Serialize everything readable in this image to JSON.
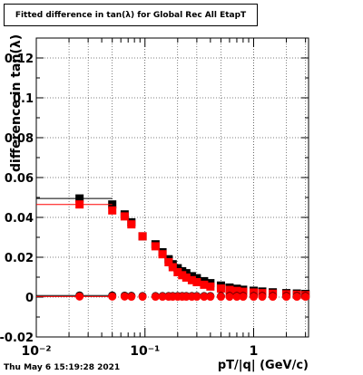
{
  "title": "Fitted difference in tan(λ) for Global Rec All EtapT",
  "timestamp": "Thu May  6 15:19:28 2021",
  "chart_data": {
    "type": "scatter",
    "title": "Fitted difference in tan(λ) for Global Rec All EtapT",
    "xlabel": "pT/|q| (GeV/c)",
    "ylabel": "difference in tan(λ)",
    "xscale": "log",
    "xlim": [
      0.01,
      3.2
    ],
    "ylim": [
      -0.02,
      0.13
    ],
    "grid": true,
    "x_ticks": [
      {
        "value": 0.01,
        "label": "10⁻²"
      },
      {
        "value": 0.1,
        "label": "10⁻¹"
      },
      {
        "value": 1,
        "label": "1"
      }
    ],
    "y_ticks": [
      {
        "value": -0.02,
        "label": "-0.02"
      },
      {
        "value": 0,
        "label": "0"
      },
      {
        "value": 0.02,
        "label": "0.02"
      },
      {
        "value": 0.04,
        "label": "0.04"
      },
      {
        "value": 0.06,
        "label": "0.06"
      },
      {
        "value": 0.08,
        "label": "0.08"
      },
      {
        "value": 0.1,
        "label": "0.1"
      },
      {
        "value": 0.12,
        "label": "0.12"
      }
    ],
    "series": [
      {
        "marker": "square",
        "color": "#000000",
        "x": [
          0.025,
          0.05,
          0.065,
          0.075,
          0.095,
          0.125,
          0.145,
          0.165,
          0.18,
          0.2,
          0.22,
          0.24,
          0.27,
          0.3,
          0.35,
          0.4,
          0.5,
          0.6,
          0.7,
          0.8,
          1.0,
          1.2,
          1.5,
          2.0,
          2.5,
          3.0
        ],
        "y": [
          0.0495,
          0.0465,
          0.0415,
          0.0375,
          0.0305,
          0.0265,
          0.0225,
          0.019,
          0.0165,
          0.0145,
          0.013,
          0.012,
          0.0105,
          0.0095,
          0.008,
          0.007,
          0.0058,
          0.0048,
          0.0042,
          0.0037,
          0.0032,
          0.0028,
          0.0024,
          0.002,
          0.0018,
          0.0016
        ],
        "xerr": [
          0.025,
          0.002,
          0.002,
          0.002,
          0.003,
          0.003,
          0.003,
          0.003,
          0.003,
          0.003,
          0.003,
          0.003,
          0.005,
          0.005,
          0.01,
          0.01,
          0.02,
          0.02,
          0.03,
          0.03,
          0.04,
          0.05,
          0.07,
          0.09,
          0.1,
          0.1
        ]
      },
      {
        "marker": "square",
        "color": "#ff0000",
        "x": [
          0.025,
          0.05,
          0.065,
          0.075,
          0.095,
          0.125,
          0.145,
          0.165,
          0.18,
          0.2,
          0.22,
          0.24,
          0.27,
          0.3,
          0.35,
          0.4,
          0.5,
          0.6,
          0.7,
          0.8,
          1.0,
          1.2,
          1.5,
          2.0,
          2.5,
          3.0
        ],
        "y": [
          0.0465,
          0.0435,
          0.0405,
          0.0365,
          0.0305,
          0.0255,
          0.0215,
          0.0175,
          0.015,
          0.0125,
          0.011,
          0.0098,
          0.0085,
          0.0075,
          0.0062,
          0.0053,
          0.0043,
          0.0036,
          0.0031,
          0.0027,
          0.0023,
          0.002,
          0.0017,
          0.0014,
          0.0012,
          0.001
        ],
        "xerr": [
          0.025,
          0.002,
          0.002,
          0.002,
          0.003,
          0.003,
          0.003,
          0.003,
          0.003,
          0.003,
          0.003,
          0.003,
          0.005,
          0.005,
          0.01,
          0.01,
          0.02,
          0.02,
          0.03,
          0.03,
          0.04,
          0.05,
          0.07,
          0.09,
          0.1,
          0.1
        ]
      },
      {
        "marker": "circle",
        "color": "#000000",
        "x": [
          0.025,
          0.05,
          0.065,
          0.075,
          0.095,
          0.125,
          0.145,
          0.165,
          0.18,
          0.2,
          0.22,
          0.24,
          0.27,
          0.3,
          0.35,
          0.4,
          0.5,
          0.6,
          0.7,
          0.8,
          1.0,
          1.2,
          1.5,
          2.0,
          2.5,
          3.0
        ],
        "y": [
          0.0008,
          0.0008,
          0.0007,
          0.0006,
          0.0005,
          0.0005,
          0.0005,
          0.0005,
          0.0005,
          0.0005,
          0.0005,
          0.0005,
          0.0005,
          0.0005,
          0.0005,
          0.0005,
          0.0005,
          0.0005,
          0.0005,
          0.0005,
          0.0005,
          0.0005,
          0.0005,
          0.0005,
          0.0005,
          0.0005
        ],
        "xerr": [
          0.025,
          0.002,
          0.002,
          0.002,
          0.003,
          0.003,
          0.003,
          0.003,
          0.003,
          0.003,
          0.003,
          0.003,
          0.005,
          0.005,
          0.01,
          0.01,
          0.02,
          0.02,
          0.03,
          0.03,
          0.04,
          0.05,
          0.07,
          0.09,
          0.1,
          0.1
        ]
      },
      {
        "marker": "circle",
        "color": "#ff0000",
        "x": [
          0.025,
          0.05,
          0.065,
          0.075,
          0.095,
          0.125,
          0.145,
          0.165,
          0.18,
          0.2,
          0.22,
          0.24,
          0.27,
          0.3,
          0.35,
          0.4,
          0.5,
          0.6,
          0.7,
          0.8,
          1.0,
          1.2,
          1.5,
          2.0,
          2.5,
          3.0
        ],
        "y": [
          0.0003,
          0.0003,
          0.0003,
          0.0002,
          0.0002,
          0.0002,
          0.0002,
          0.0002,
          0.0002,
          0.0002,
          0.0002,
          0.0002,
          0.0002,
          0.0002,
          0.0002,
          0.0002,
          0.0002,
          0.0002,
          0.0002,
          0.0002,
          0.0002,
          0.0002,
          0.0002,
          0.0002,
          0.0002,
          0.0002
        ],
        "xerr": [
          0.025,
          0.002,
          0.002,
          0.002,
          0.003,
          0.003,
          0.003,
          0.003,
          0.003,
          0.003,
          0.003,
          0.003,
          0.005,
          0.005,
          0.01,
          0.01,
          0.02,
          0.02,
          0.03,
          0.03,
          0.04,
          0.05,
          0.07,
          0.09,
          0.1,
          0.1
        ]
      }
    ]
  }
}
